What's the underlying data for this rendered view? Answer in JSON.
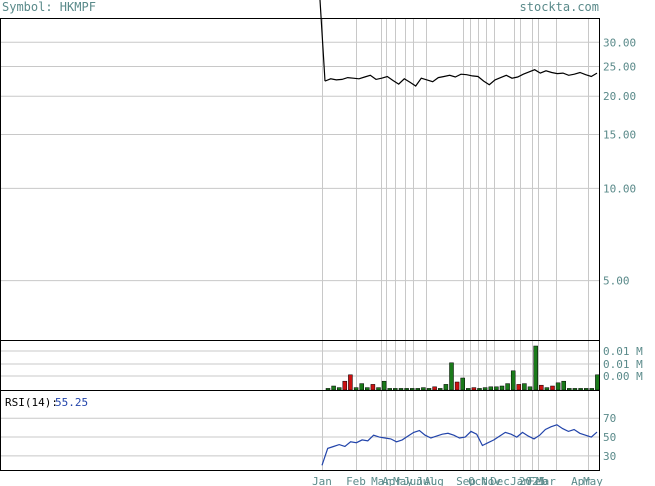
{
  "header": {
    "symbol_label": "Symbol: HKMPF",
    "site_label": "stockta.com"
  },
  "colors": {
    "text": "#5a8a8a",
    "frame": "#000000",
    "grid": "#c8c8c8",
    "price_line": "#000000",
    "volume_up": "#1a7a1a",
    "volume_down": "#cc1111",
    "rsi_line": "#2244aa",
    "rsi_value": "#2244aa"
  },
  "chart_data": [
    {
      "type": "line",
      "name": "price",
      "y_scale": "log",
      "ylim": [
        3.2,
        36
      ],
      "y_ticks": [
        "30.00",
        "25.00",
        "20.00",
        "15.00",
        "10.00",
        "5.00"
      ],
      "x_labels": [
        "Jan",
        "Feb",
        "Mar",
        "Apr",
        "May",
        "Jun",
        "Jul",
        "Aug",
        "Sep",
        "Oct",
        "Nov",
        "Dec",
        "Jan",
        "2025",
        "Feb",
        "Mar",
        "Apr",
        "May"
      ],
      "values": [
        22.4,
        22.8,
        22.6,
        22.7,
        23.0,
        22.9,
        22.8,
        23.1,
        23.4,
        22.7,
        22.9,
        23.2,
        22.5,
        21.9,
        22.8,
        22.2,
        21.6,
        22.9,
        22.6,
        22.3,
        23.0,
        23.2,
        23.4,
        23.1,
        23.6,
        23.5,
        23.3,
        23.2,
        22.4,
        21.8,
        22.6,
        23.0,
        23.4,
        22.9,
        23.1,
        23.6,
        24.0,
        24.4,
        23.8,
        24.2,
        23.9,
        23.7,
        23.8,
        23.4,
        23.6,
        23.9,
        23.5,
        23.2,
        23.8
      ],
      "grid": true
    },
    {
      "type": "bar",
      "name": "volume",
      "y_ticks": [
        "0.01 M",
        "0.01 M",
        "0.00 M"
      ],
      "bars": [
        {
          "v": 0.001,
          "c": "up"
        },
        {
          "v": 0.0025,
          "c": "up"
        },
        {
          "v": 0.0015,
          "c": "up"
        },
        {
          "v": 0.0055,
          "c": "down"
        },
        {
          "v": 0.0095,
          "c": "down"
        },
        {
          "v": 0.0015,
          "c": "up"
        },
        {
          "v": 0.004,
          "c": "up"
        },
        {
          "v": 0.0015,
          "c": "up"
        },
        {
          "v": 0.0035,
          "c": "down"
        },
        {
          "v": 0.0015,
          "c": "up"
        },
        {
          "v": 0.0055,
          "c": "up"
        },
        {
          "v": 0.001,
          "c": "up"
        },
        {
          "v": 0.001,
          "c": "up"
        },
        {
          "v": 0.001,
          "c": "up"
        },
        {
          "v": 0.001,
          "c": "up"
        },
        {
          "v": 0.001,
          "c": "up"
        },
        {
          "v": 0.001,
          "c": "up"
        },
        {
          "v": 0.0015,
          "c": "up"
        },
        {
          "v": 0.001,
          "c": "up"
        },
        {
          "v": 0.002,
          "c": "down"
        },
        {
          "v": 0.001,
          "c": "up"
        },
        {
          "v": 0.0035,
          "c": "up"
        },
        {
          "v": 0.017,
          "c": "up"
        },
        {
          "v": 0.005,
          "c": "down"
        },
        {
          "v": 0.0075,
          "c": "up"
        },
        {
          "v": 0.001,
          "c": "up"
        },
        {
          "v": 0.0015,
          "c": "down"
        },
        {
          "v": 0.001,
          "c": "up"
        },
        {
          "v": 0.0015,
          "c": "up"
        },
        {
          "v": 0.002,
          "c": "up"
        },
        {
          "v": 0.002,
          "c": "up"
        },
        {
          "v": 0.0025,
          "c": "up"
        },
        {
          "v": 0.004,
          "c": "up"
        },
        {
          "v": 0.012,
          "c": "up"
        },
        {
          "v": 0.0035,
          "c": "down"
        },
        {
          "v": 0.004,
          "c": "up"
        },
        {
          "v": 0.002,
          "c": "up"
        },
        {
          "v": 0.0275,
          "c": "up"
        },
        {
          "v": 0.003,
          "c": "down"
        },
        {
          "v": 0.0015,
          "c": "up"
        },
        {
          "v": 0.0025,
          "c": "down"
        },
        {
          "v": 0.0045,
          "c": "up"
        },
        {
          "v": 0.0055,
          "c": "up"
        },
        {
          "v": 0.001,
          "c": "up"
        },
        {
          "v": 0.001,
          "c": "up"
        },
        {
          "v": 0.001,
          "c": "up"
        },
        {
          "v": 0.001,
          "c": "up"
        },
        {
          "v": 0.001,
          "c": "up"
        },
        {
          "v": 0.0095,
          "c": "up"
        }
      ],
      "vmax": 0.03,
      "grid": true
    },
    {
      "type": "line",
      "name": "rsi",
      "label": "RSI(14):",
      "current_value": "55.25",
      "ylim": [
        15,
        100
      ],
      "y_ticks": [
        "70",
        "50",
        "30"
      ],
      "values": [
        20,
        38,
        40,
        42,
        40,
        45,
        44,
        47,
        46,
        52,
        50,
        49,
        48,
        45,
        47,
        51,
        55,
        57,
        52,
        49,
        51,
        53,
        54,
        52,
        49,
        50,
        56,
        53,
        41,
        44,
        47,
        51,
        55,
        53,
        50,
        55,
        51,
        48,
        52,
        58,
        61,
        63,
        59,
        56,
        58,
        54,
        52,
        50,
        55.25
      ],
      "grid": true
    }
  ]
}
